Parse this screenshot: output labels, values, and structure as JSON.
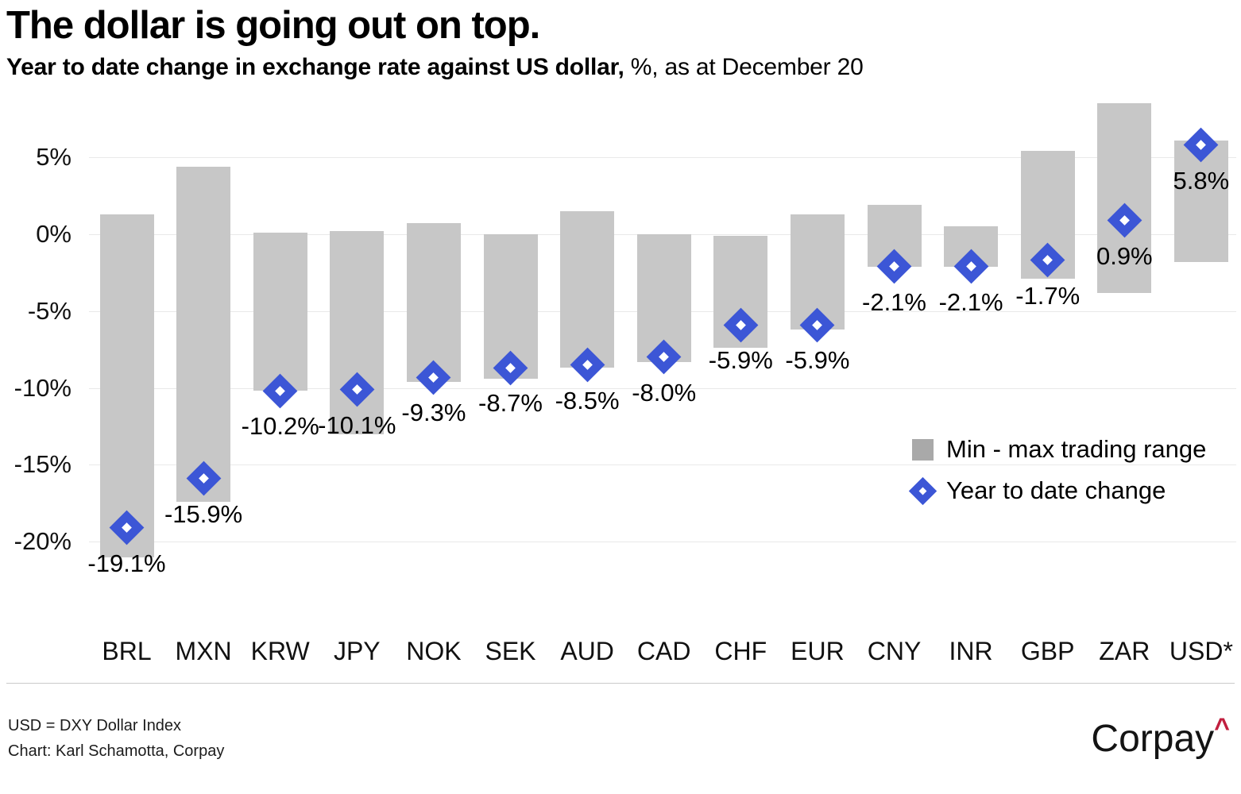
{
  "header": {
    "title": "The dollar is going out on top.",
    "subtitle_bold": "Year to date change in exchange rate against US dollar,",
    "subtitle_regular": " %, as at December 20"
  },
  "chart_data": {
    "type": "bar",
    "subtype": "range-bars-with-diamond-markers",
    "title": "The dollar is going out on top.",
    "subtitle": "Year to date change in exchange rate against US dollar, %, as at December 20",
    "categories": [
      "BRL",
      "MXN",
      "KRW",
      "JPY",
      "NOK",
      "SEK",
      "AUD",
      "CAD",
      "CHF",
      "EUR",
      "CNY",
      "INR",
      "GBP",
      "ZAR",
      "USD*"
    ],
    "series": [
      {
        "name": "Min - max trading range",
        "type": "range",
        "ranges": [
          [
            -21.0,
            1.3
          ],
          [
            -17.4,
            4.4
          ],
          [
            -10.2,
            0.1
          ],
          [
            -13.0,
            0.2
          ],
          [
            -9.6,
            0.7
          ],
          [
            -9.4,
            0.0
          ],
          [
            -8.7,
            1.5
          ],
          [
            -8.3,
            0.0
          ],
          [
            -7.4,
            -0.1
          ],
          [
            -6.2,
            1.3
          ],
          [
            -2.1,
            1.9
          ],
          [
            -2.1,
            0.5
          ],
          [
            -2.9,
            5.4
          ],
          [
            -3.8,
            8.5
          ],
          [
            -1.8,
            6.1
          ]
        ]
      },
      {
        "name": "Year to date change",
        "type": "scatter-diamond",
        "values": [
          -19.1,
          -15.9,
          -10.2,
          -10.1,
          -9.3,
          -8.7,
          -8.5,
          -8.0,
          -5.9,
          -5.9,
          -2.1,
          -2.1,
          -1.7,
          0.9,
          5.8
        ]
      }
    ],
    "value_labels": [
      "-19.1%",
      "-15.9%",
      "-10.2%",
      "-10.1%",
      "-9.3%",
      "-8.7%",
      "-8.5%",
      "-8.0%",
      "-5.9%",
      "-5.9%",
      "-2.1%",
      "-2.1%",
      "-1.7%",
      "0.9%",
      "5.8%"
    ],
    "yticks": [
      "5%",
      "0%",
      "-5%",
      "-10%",
      "-15%",
      "-20%"
    ],
    "ytick_values": [
      5,
      0,
      -5,
      -10,
      -15,
      -20
    ],
    "ylabel": "",
    "xlabel": "",
    "ylim": [
      -22.5,
      8.7
    ],
    "grid": true,
    "legend_position": "center-right"
  },
  "legend": {
    "range_label": "Min - max trading range",
    "ytd_label": "Year to date change"
  },
  "footnotes": {
    "line1": "USD = DXY Dollar Index",
    "line2": "Chart: Karl Schamotta, Corpay"
  },
  "logo": {
    "text": "Corpay",
    "caret": "^"
  },
  "colors": {
    "bar": "#c7c7c7",
    "legend_bar": "#a9a9a9",
    "diamond": "#3c56d6",
    "diamond_hole": "#ffffff",
    "gridline": "#e9e9e9",
    "caret_red": "#c11f3f",
    "text": "#000000"
  }
}
